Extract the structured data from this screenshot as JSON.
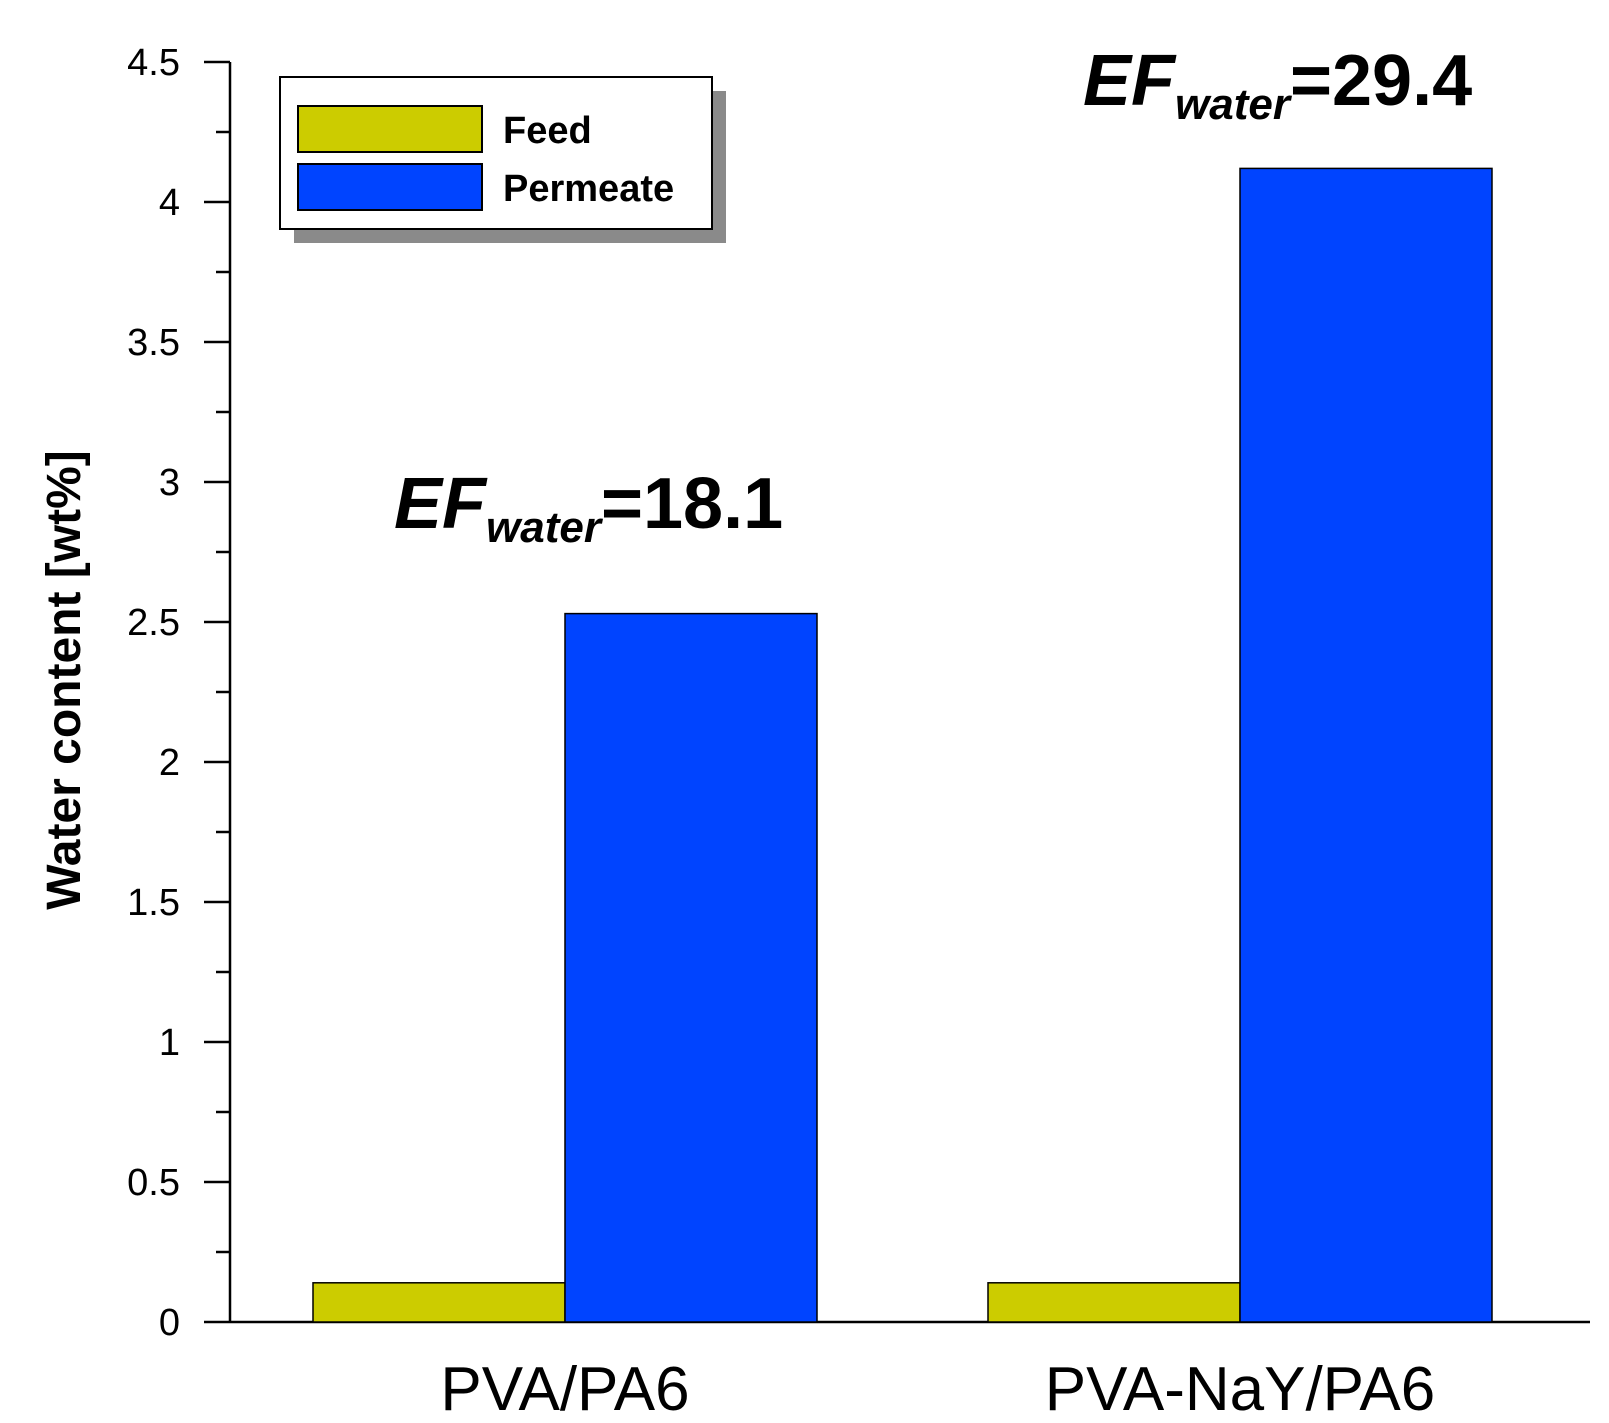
{
  "chart_data": {
    "type": "bar",
    "title": "",
    "xlabel": "",
    "ylabel": "Water content [wt%]",
    "ylim": [
      0,
      4.5
    ],
    "y_ticks": [
      "0",
      "0.5",
      "1",
      "1.5",
      "2",
      "2.5",
      "3",
      "3.5",
      "4",
      "4.5"
    ],
    "y_tick_values": [
      0,
      0.5,
      1,
      1.5,
      2,
      2.5,
      3,
      3.5,
      4,
      4.5
    ],
    "categories": [
      "PVA/PA6",
      "PVA-NaY/PA6"
    ],
    "series": [
      {
        "name": "Feed",
        "color": "#cccc00",
        "values": [
          0.14,
          0.14
        ]
      },
      {
        "name": "Permeate",
        "color": "#0044ff",
        "values": [
          2.53,
          4.12
        ]
      }
    ],
    "legend": {
      "position": "top-left",
      "entries": [
        "Feed",
        "Permeate"
      ]
    },
    "annotations": [
      {
        "prefix": "EF",
        "subscript": "water",
        "suffix": "=18.1",
        "category": "PVA/PA6"
      },
      {
        "prefix": "EF",
        "subscript": "water",
        "suffix": "=29.4",
        "category": "PVA-NaY/PA6"
      }
    ],
    "grid": false
  }
}
